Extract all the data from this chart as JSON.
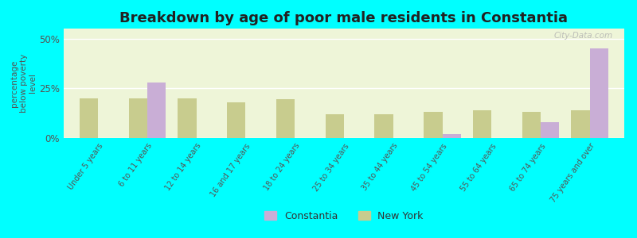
{
  "title": "Breakdown by age of poor male residents in Constantia",
  "ylabel": "percentage\nbelow poverty\nlevel",
  "categories": [
    "Under 5 years",
    "6 to 11 years",
    "12 to 14 years",
    "16 and 17 years",
    "18 to 24 years",
    "25 to 34 years",
    "35 to 44 years",
    "45 to 54 years",
    "55 to 64 years",
    "65 to 74 years",
    "75 years and over"
  ],
  "constantia_values": [
    0,
    28.0,
    0,
    0,
    0,
    0,
    0,
    2.0,
    0,
    8.0,
    45.0
  ],
  "newyork_values": [
    20.0,
    20.0,
    20.0,
    18.0,
    19.5,
    12.0,
    12.0,
    13.0,
    14.0,
    13.0,
    14.0
  ],
  "constantia_color": "#c9aed6",
  "newyork_color": "#c8cc8e",
  "bg_color": "#00ffff",
  "plot_bg_color": "#eef5d8",
  "ylim": [
    0,
    55
  ],
  "yticks": [
    0,
    25,
    50
  ],
  "ytick_labels": [
    "0%",
    "25%",
    "50%"
  ],
  "legend_constantia": "Constantia",
  "legend_newyork": "New York",
  "title_fontsize": 13,
  "bar_width": 0.38
}
